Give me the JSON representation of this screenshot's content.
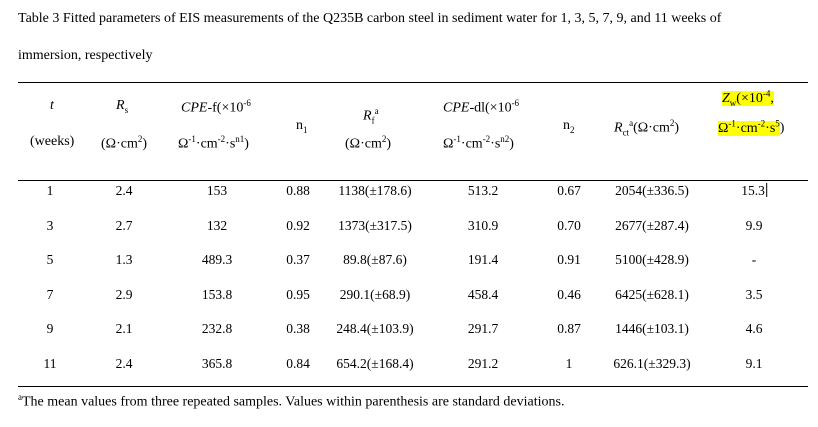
{
  "caption": {
    "line1": "Table 3 Fitted parameters of EIS measurements of the Q235B carbon steel in sediment water for 1, 3, 5, 7, 9, and 11 weeks of",
    "line2": "immersion, respectively"
  },
  "headers": {
    "t": "t",
    "weeks": "(weeks)",
    "rs": "R",
    "rs_sub": "s",
    "rs_unit": "(Ω·cm",
    "cpef": "CPE",
    "cpef_rest": "-f(×10",
    "cpef_exp": "-6",
    "cpef_unit_a": "Ω",
    "cpef_unit_b": "·cm",
    "cpef_unit_c": "·s",
    "cpef_unit_d": ")",
    "n1": "n",
    "n1_sub": "1",
    "rf": "R",
    "rf_sub": "f",
    "rf_sup": "a",
    "rf_unit": "(Ω·cm",
    "cpedl": "CPE",
    "cpedl_rest": "-dl(×10",
    "cpedl_exp": "-6",
    "cpedl_unit_a": "Ω",
    "cpedl_unit_b": "·cm",
    "cpedl_unit_c": "·s",
    "cpedl_unit_d": ")",
    "n2": "n",
    "n2_sub": "2",
    "rct": "R",
    "rct_sub": "ct",
    "rct_sup": "a",
    "rct_unit": "(Ω·cm",
    "zw": "Z",
    "zw_sub": "w",
    "zw_rest": "(×10",
    "zw_exp": "-4",
    "zw_comma": ",",
    "zw_unit_a": "Ω",
    "zw_unit_b": "·cm",
    "zw_unit_c": "·s",
    "zw_unit_d": ")",
    "sup_m1": "-1",
    "sup_m2": "-2",
    "sup_2": "2",
    "sup_n1": "n1",
    "sup_n2": "n2",
    "sup_5": "5",
    "close": ")"
  },
  "rows": [
    {
      "t": "1",
      "rs": "2.4",
      "cpef": "153",
      "n1": "0.88",
      "rf": "1138(±178.6)",
      "cpedl": "513.2",
      "n2": "0.67",
      "rct": "2054(±336.5)",
      "zw": "15.3"
    },
    {
      "t": "3",
      "rs": "2.7",
      "cpef": "132",
      "n1": "0.92",
      "rf": "1373(±317.5)",
      "cpedl": "310.9",
      "n2": "0.70",
      "rct": "2677(±287.4)",
      "zw": "9.9"
    },
    {
      "t": "5",
      "rs": "1.3",
      "cpef": "489.3",
      "n1": "0.37",
      "rf": "89.8(±87.6)",
      "cpedl": "191.4",
      "n2": "0.91",
      "rct": "5100(±428.9)",
      "zw": "-"
    },
    {
      "t": "7",
      "rs": "2.9",
      "cpef": "153.8",
      "n1": "0.95",
      "rf": "290.1(±68.9)",
      "cpedl": "458.4",
      "n2": "0.46",
      "rct": "6425(±628.1)",
      "zw": "3.5"
    },
    {
      "t": "9",
      "rs": "2.1",
      "cpef": "232.8",
      "n1": "0.38",
      "rf": "248.4(±103.9)",
      "cpedl": "291.7",
      "n2": "0.87",
      "rct": "1446(±103.1)",
      "zw": "4.6"
    },
    {
      "t": "11",
      "rs": "2.4",
      "cpef": "365.8",
      "n1": "0.84",
      "rf": "654.2(±168.4)",
      "cpedl": "291.2",
      "n2": "1",
      "rct": "626.1(±329.3)",
      "zw": "9.1"
    }
  ],
  "footnote": {
    "marker": "a",
    "text": "The mean values from three repeated samples. Values within parenthesis are standard deviations."
  },
  "colors": {
    "highlight": "#ffff00"
  }
}
